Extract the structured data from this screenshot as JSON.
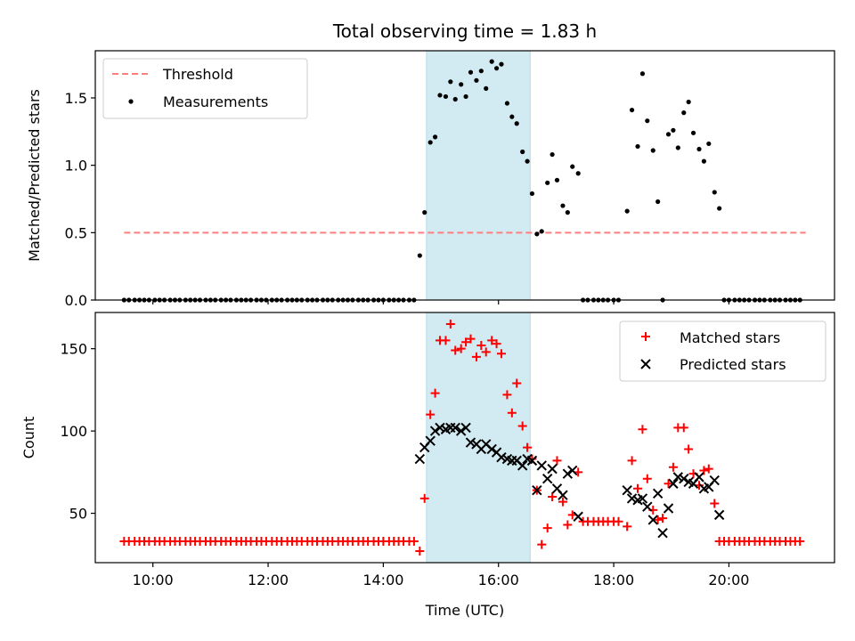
{
  "figure": {
    "title": "Total observing time = 1.83 h",
    "xlabel": "Time (UTC)",
    "x_ticks": [
      "10:00",
      "12:00",
      "14:00",
      "16:00",
      "18:00",
      "20:00"
    ]
  },
  "chart_data": [
    {
      "type": "scatter",
      "ylabel": "Matched/Predicted stars",
      "xlim": [
        "09:00",
        "21:50"
      ],
      "ylim": [
        0,
        1.85
      ],
      "y_ticks": [
        "0.0",
        "0.5",
        "1.0",
        "1.5"
      ],
      "legend_position": "upper left",
      "shaded_span": {
        "from": "14:45",
        "to": "16:33",
        "color": "#add8e6"
      },
      "threshold": {
        "name": "Threshold",
        "value": 0.5,
        "from": "09:30",
        "to": "21:20",
        "color": "#ff7f7f"
      },
      "series": [
        {
          "name": "Measurements",
          "color": "#000000",
          "zero_run_1": {
            "from": "09:30",
            "to": "14:33",
            "value": 0.0
          },
          "points": [
            [
              "14:38",
              0.33
            ],
            [
              "14:43",
              0.65
            ],
            [
              "14:49",
              1.17
            ],
            [
              "14:54",
              1.21
            ],
            [
              "14:59",
              1.52
            ],
            [
              "15:05",
              1.51
            ],
            [
              "15:10",
              1.62
            ],
            [
              "15:15",
              1.49
            ],
            [
              "15:21",
              1.6
            ],
            [
              "15:26",
              1.51
            ],
            [
              "15:31",
              1.69
            ],
            [
              "15:37",
              1.63
            ],
            [
              "15:42",
              1.7
            ],
            [
              "15:47",
              1.57
            ],
            [
              "15:53",
              1.77
            ],
            [
              "15:58",
              1.72
            ],
            [
              "16:03",
              1.75
            ],
            [
              "16:09",
              1.46
            ],
            [
              "16:14",
              1.36
            ],
            [
              "16:19",
              1.31
            ],
            [
              "16:25",
              1.1
            ],
            [
              "16:30",
              1.03
            ],
            [
              "16:35",
              0.79
            ],
            [
              "16:40",
              0.49
            ],
            [
              "16:45",
              0.51
            ],
            [
              "16:51",
              0.87
            ],
            [
              "16:56",
              1.08
            ],
            [
              "17:01",
              0.89
            ],
            [
              "17:07",
              0.7
            ],
            [
              "17:12",
              0.65
            ],
            [
              "17:17",
              0.99
            ],
            [
              "17:23",
              0.94
            ],
            [
              "18:14",
              0.66
            ],
            [
              "18:19",
              1.41
            ],
            [
              "18:25",
              1.14
            ],
            [
              "18:30",
              1.68
            ],
            [
              "18:35",
              1.33
            ],
            [
              "18:41",
              1.11
            ],
            [
              "18:46",
              0.73
            ],
            [
              "18:51",
              0.0
            ],
            [
              "18:57",
              1.23
            ],
            [
              "19:02",
              1.26
            ],
            [
              "19:07",
              1.13
            ],
            [
              "19:13",
              1.39
            ],
            [
              "19:18",
              1.47
            ],
            [
              "19:23",
              1.24
            ],
            [
              "19:29",
              1.12
            ],
            [
              "19:34",
              1.03
            ],
            [
              "19:39",
              1.16
            ],
            [
              "19:45",
              0.8
            ],
            [
              "19:50",
              0.68
            ]
          ],
          "zero_run_2": {
            "from": "17:28",
            "to": "18:09",
            "value": 0.0
          },
          "zero_run_3": {
            "from": "19:55",
            "to": "21:15",
            "value": 0.0
          }
        }
      ]
    },
    {
      "type": "scatter",
      "ylabel": "Count",
      "xlim": [
        "09:00",
        "21:50"
      ],
      "ylim": [
        20,
        172
      ],
      "y_ticks": [
        "50",
        "100",
        "150"
      ],
      "legend_position": "upper right",
      "shaded_span": {
        "from": "14:45",
        "to": "16:33",
        "color": "#add8e6"
      },
      "series": [
        {
          "name": "Matched stars",
          "marker": "+",
          "color": "#ff0000",
          "baseline_run": {
            "from": "09:30",
            "to": "14:33",
            "value": 33
          },
          "points": [
            [
              "14:38",
              27
            ],
            [
              "14:43",
              59
            ],
            [
              "14:49",
              110
            ],
            [
              "14:54",
              123
            ],
            [
              "14:59",
              155
            ],
            [
              "15:05",
              155
            ],
            [
              "15:10",
              165
            ],
            [
              "15:15",
              149
            ],
            [
              "15:21",
              150
            ],
            [
              "15:26",
              154
            ],
            [
              "15:31",
              156
            ],
            [
              "15:37",
              145
            ],
            [
              "15:42",
              152
            ],
            [
              "15:47",
              148
            ],
            [
              "15:53",
              155
            ],
            [
              "15:58",
              153
            ],
            [
              "16:03",
              147
            ],
            [
              "16:09",
              122
            ],
            [
              "16:14",
              111
            ],
            [
              "16:19",
              129
            ],
            [
              "16:25",
              103
            ],
            [
              "16:30",
              90
            ],
            [
              "16:35",
              83
            ],
            [
              "16:40",
              64
            ],
            [
              "16:45",
              31
            ],
            [
              "16:51",
              41
            ],
            [
              "16:56",
              60
            ],
            [
              "17:01",
              82
            ],
            [
              "17:07",
              57
            ],
            [
              "17:12",
              43
            ],
            [
              "17:17",
              49
            ],
            [
              "17:23",
              75
            ],
            [
              "18:14",
              42
            ],
            [
              "18:19",
              82
            ],
            [
              "18:25",
              65
            ],
            [
              "18:30",
              101
            ],
            [
              "18:35",
              71
            ],
            [
              "18:41",
              52
            ],
            [
              "18:46",
              46
            ],
            [
              "18:51",
              47
            ],
            [
              "18:57",
              68
            ],
            [
              "19:02",
              78
            ],
            [
              "19:07",
              102
            ],
            [
              "19:13",
              102
            ],
            [
              "19:18",
              89
            ],
            [
              "19:23",
              74
            ],
            [
              "19:29",
              67
            ],
            [
              "19:34",
              76
            ],
            [
              "19:39",
              77
            ],
            [
              "19:45",
              56
            ],
            [
              "19:50",
              33
            ]
          ],
          "plateau_run": {
            "from": "17:28",
            "to": "18:09",
            "value": 45
          },
          "tail_run": {
            "from": "19:55",
            "to": "21:15",
            "value": 33
          }
        },
        {
          "name": "Predicted stars",
          "marker": "x",
          "color": "#000000",
          "points": [
            [
              "14:38",
              83
            ],
            [
              "14:43",
              90
            ],
            [
              "14:49",
              94
            ],
            [
              "14:54",
              100
            ],
            [
              "14:59",
              102
            ],
            [
              "15:05",
              101
            ],
            [
              "15:10",
              102
            ],
            [
              "15:15",
              102
            ],
            [
              "15:21",
              100
            ],
            [
              "15:26",
              102
            ],
            [
              "15:31",
              93
            ],
            [
              "15:37",
              92
            ],
            [
              "15:42",
              89
            ],
            [
              "15:47",
              92
            ],
            [
              "15:53",
              89
            ],
            [
              "15:58",
              87
            ],
            [
              "16:03",
              84
            ],
            [
              "16:09",
              83
            ],
            [
              "16:14",
              82
            ],
            [
              "16:19",
              82
            ],
            [
              "16:25",
              79
            ],
            [
              "16:30",
              83
            ],
            [
              "16:35",
              82
            ],
            [
              "16:40",
              64
            ],
            [
              "16:45",
              79
            ],
            [
              "16:51",
              71
            ],
            [
              "16:56",
              77
            ],
            [
              "17:01",
              65
            ],
            [
              "17:07",
              61
            ],
            [
              "17:12",
              74
            ],
            [
              "17:17",
              76
            ],
            [
              "17:23",
              48
            ],
            [
              "18:14",
              64
            ],
            [
              "18:19",
              59
            ],
            [
              "18:25",
              58
            ],
            [
              "18:30",
              59
            ],
            [
              "18:35",
              54
            ],
            [
              "18:41",
              46
            ],
            [
              "18:46",
              62
            ],
            [
              "18:51",
              38
            ],
            [
              "18:57",
              53
            ],
            [
              "19:02",
              68
            ],
            [
              "19:07",
              72
            ],
            [
              "19:13",
              71
            ],
            [
              "19:18",
              69
            ],
            [
              "19:23",
              68
            ],
            [
              "19:29",
              72
            ],
            [
              "19:34",
              65
            ],
            [
              "19:39",
              66
            ],
            [
              "19:45",
              70
            ],
            [
              "19:50",
              49
            ]
          ]
        }
      ]
    }
  ]
}
